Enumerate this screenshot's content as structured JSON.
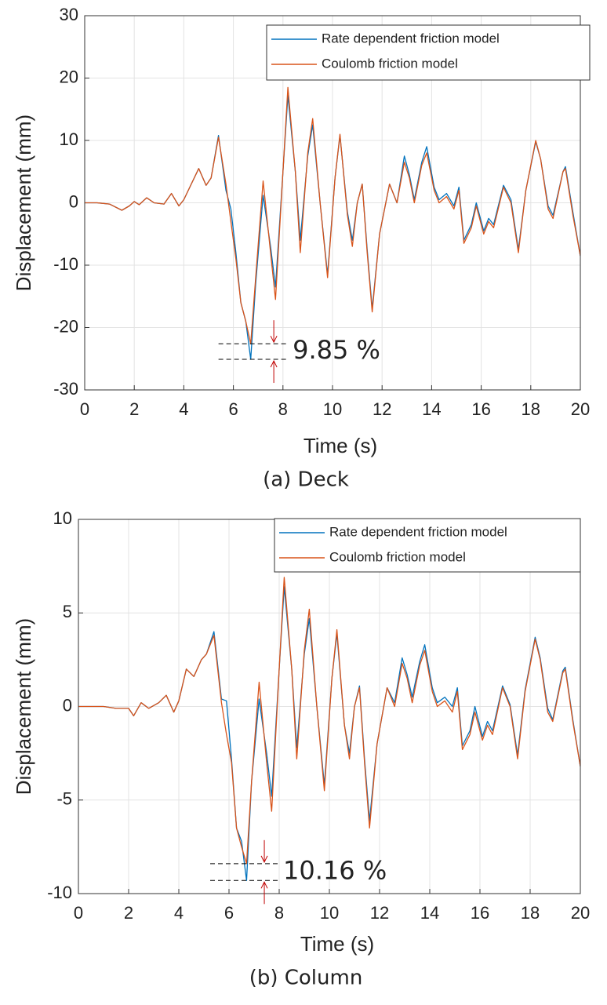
{
  "chart_data": [
    {
      "type": "line",
      "caption": "(a) Deck",
      "xlabel": "Time (s)",
      "ylabel": "Displacement (mm)",
      "x": [
        0,
        0.5,
        1,
        1.5,
        1.8,
        2,
        2.2,
        2.5,
        2.8,
        3.2,
        3.5,
        3.8,
        4,
        4.3,
        4.6,
        4.9,
        5.1,
        5.4,
        5.7,
        5.9,
        6.1,
        6.3,
        6.5,
        6.7,
        6.9,
        7.2,
        7.5,
        7.7,
        8,
        8.2,
        8.5,
        8.7,
        9,
        9.2,
        9.5,
        9.8,
        10.1,
        10.3,
        10.6,
        10.8,
        11,
        11.2,
        11.4,
        11.6,
        11.9,
        12.3,
        12.6,
        12.9,
        13.1,
        13.3,
        13.6,
        13.8,
        14.1,
        14.3,
        14.6,
        14.9,
        15.1,
        15.3,
        15.6,
        15.8,
        16.1,
        16.3,
        16.5,
        16.9,
        17.2,
        17.5,
        17.8,
        18.2,
        18.4,
        18.7,
        18.9,
        19.3,
        19.4,
        19.7,
        20
      ],
      "series": [
        {
          "name": "Rate dependent friction model",
          "color": "#0072bd",
          "values": [
            0,
            0,
            -0.2,
            -1.2,
            -0.5,
            0.2,
            -0.3,
            0.8,
            0,
            -0.2,
            1.5,
            -0.5,
            0.5,
            3,
            5.5,
            2.8,
            4,
            10.8,
            2,
            -1,
            -8,
            -16,
            -19,
            -25.1,
            -13,
            1.2,
            -7,
            -13.5,
            5,
            17.2,
            5,
            -6,
            7.5,
            12.5,
            0,
            -11.5,
            4,
            10.8,
            -1.5,
            -6,
            0,
            3,
            -7.5,
            -17,
            -5,
            3,
            0,
            7.5,
            4.5,
            0.5,
            6.5,
            9,
            2.5,
            0.5,
            1.5,
            -0.5,
            2.5,
            -6,
            -3.5,
            0,
            -4.5,
            -2.5,
            -3.5,
            2.8,
            0.5,
            -7.5,
            2,
            9.8,
            7,
            -0.5,
            -2,
            5,
            5.8,
            -1.5,
            -8.5
          ]
        },
        {
          "name": "Coulomb friction model",
          "color": "#d95319",
          "values": [
            0,
            0,
            -0.2,
            -1.2,
            -0.5,
            0.2,
            -0.3,
            0.8,
            0,
            -0.2,
            1.5,
            -0.5,
            0.5,
            3,
            5.5,
            2.8,
            4,
            10.5,
            3,
            -3,
            -9,
            -16,
            -19,
            -22.6,
            -12,
            3.5,
            -8,
            -15.5,
            5,
            18.5,
            5,
            -8,
            8,
            13.5,
            0,
            -12,
            4,
            11,
            -2,
            -7,
            0,
            3,
            -8,
            -17.5,
            -5,
            3,
            0,
            6.5,
            4,
            0,
            6,
            8,
            2,
            0,
            1,
            -1,
            2,
            -6.5,
            -4,
            -0.5,
            -5,
            -3,
            -4,
            2.5,
            0,
            -8,
            2,
            10,
            7,
            -1,
            -2.5,
            5,
            5.5,
            -2,
            -8.5
          ]
        }
      ],
      "xlim": [
        0,
        20
      ],
      "xticks": [
        0,
        2,
        4,
        6,
        8,
        10,
        12,
        14,
        16,
        18,
        20
      ],
      "ylim": [
        -30,
        30
      ],
      "yticks": [
        -30,
        -20,
        -10,
        0,
        10,
        20,
        30
      ],
      "grid": true,
      "legend": "upper right",
      "annotation": {
        "text": "9.85 %",
        "y": [
          -22.6,
          -25.1
        ],
        "x": [
          5.4,
          8.2
        ],
        "color": "#c00000"
      }
    },
    {
      "type": "line",
      "caption": "(b) Column",
      "xlabel": "Time (s)",
      "ylabel": "Displacement (mm)",
      "x": [
        0,
        0.5,
        1,
        1.5,
        1.8,
        2,
        2.2,
        2.5,
        2.8,
        3.2,
        3.5,
        3.8,
        4,
        4.3,
        4.6,
        4.9,
        5.1,
        5.4,
        5.7,
        5.9,
        6.1,
        6.3,
        6.5,
        6.7,
        6.9,
        7.2,
        7.5,
        7.7,
        8,
        8.2,
        8.5,
        8.7,
        9,
        9.2,
        9.5,
        9.8,
        10.1,
        10.3,
        10.6,
        10.8,
        11,
        11.2,
        11.4,
        11.6,
        11.9,
        12.3,
        12.6,
        12.9,
        13.1,
        13.3,
        13.6,
        13.8,
        14.1,
        14.3,
        14.6,
        14.9,
        15.1,
        15.3,
        15.6,
        15.8,
        16.1,
        16.3,
        16.5,
        16.9,
        17.2,
        17.5,
        17.8,
        18.2,
        18.4,
        18.7,
        18.9,
        19.3,
        19.4,
        19.7,
        20
      ],
      "series": [
        {
          "name": "Rate dependent friction model",
          "color": "#0072bd",
          "values": [
            0,
            0,
            0,
            -0.1,
            -0.1,
            -0.1,
            -0.5,
            0.2,
            -0.1,
            0.2,
            0.6,
            -0.3,
            0.3,
            2,
            1.6,
            2.5,
            2.8,
            4,
            0.4,
            0.3,
            -2.8,
            -6.5,
            -7.2,
            -9.3,
            -4,
            0.4,
            -2.5,
            -4.8,
            2,
            6.4,
            2,
            -2.2,
            2.8,
            4.7,
            0,
            -4.2,
            1.5,
            3.9,
            -1,
            -2.5,
            0,
            1.1,
            -2.8,
            -6.1,
            -2,
            1,
            0.2,
            2.6,
            1.7,
            0.5,
            2.4,
            3.3,
            1,
            0.2,
            0.5,
            0,
            1,
            -2.1,
            -1.3,
            0,
            -1.6,
            -0.8,
            -1.3,
            1.1,
            0.1,
            -2.6,
            0.9,
            3.7,
            2.6,
            -0.1,
            -0.7,
            1.9,
            2.1,
            -0.7,
            -3.2
          ]
        },
        {
          "name": "Coulomb friction model",
          "color": "#d95319",
          "values": [
            0,
            0,
            0,
            -0.1,
            -0.1,
            -0.1,
            -0.5,
            0.2,
            -0.1,
            0.2,
            0.6,
            -0.3,
            0.3,
            2,
            1.6,
            2.5,
            2.8,
            3.8,
            0.2,
            -1.5,
            -3,
            -6.5,
            -7.5,
            -8.4,
            -4,
            1.3,
            -3,
            -5.6,
            2,
            6.9,
            2,
            -2.8,
            3,
            5.2,
            0,
            -4.5,
            1.5,
            4.1,
            -1,
            -2.8,
            0,
            1,
            -3,
            -6.5,
            -2,
            1,
            0,
            2.3,
            1.5,
            0.2,
            2.2,
            3,
            0.8,
            0,
            0.3,
            -0.3,
            0.8,
            -2.3,
            -1.5,
            -0.3,
            -1.8,
            -1,
            -1.5,
            1,
            0,
            -2.8,
            0.8,
            3.6,
            2.5,
            -0.3,
            -0.8,
            1.8,
            2,
            -0.8,
            -3.2
          ]
        }
      ],
      "xlim": [
        0,
        20
      ],
      "xticks": [
        0,
        2,
        4,
        6,
        8,
        10,
        12,
        14,
        16,
        18,
        20
      ],
      "ylim": [
        -10,
        10
      ],
      "yticks": [
        -10,
        -5,
        0,
        5,
        10
      ],
      "grid": true,
      "legend": "upper right",
      "annotation": {
        "text": "10.16 %",
        "y": [
          -8.4,
          -9.3
        ],
        "x": [
          5.25,
          7.97
        ],
        "color": "#c00000"
      }
    }
  ]
}
